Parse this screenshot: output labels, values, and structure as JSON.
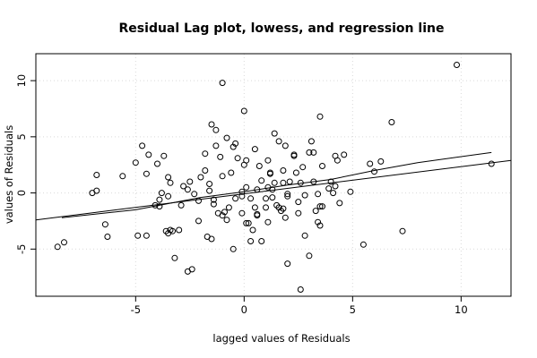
{
  "chart_data": {
    "type": "scatter",
    "title": "Residual Lag plot, lowess, and regression line",
    "xlabel": "lagged values of Residuals",
    "ylabel": "values of Residuals",
    "xlim": [
      -9.6,
      12.3
    ],
    "ylim": [
      -9.2,
      12.4
    ],
    "x_ticks": [
      -5,
      0,
      5,
      10
    ],
    "y_ticks": [
      -5,
      0,
      5,
      10
    ],
    "grid": true,
    "points": [
      [
        -8.6,
        -4.8
      ],
      [
        -8.3,
        -4.4
      ],
      [
        -7.0,
        0.0
      ],
      [
        -6.8,
        0.2
      ],
      [
        -6.8,
        1.6
      ],
      [
        -6.4,
        -2.8
      ],
      [
        -6.3,
        -3.9
      ],
      [
        -5.6,
        1.5
      ],
      [
        -5.0,
        2.7
      ],
      [
        -4.9,
        -3.8
      ],
      [
        -4.7,
        4.2
      ],
      [
        -4.5,
        1.7
      ],
      [
        -4.5,
        -3.8
      ],
      [
        -4.4,
        3.4
      ],
      [
        -4.1,
        -1.1
      ],
      [
        -4.0,
        2.6
      ],
      [
        -3.9,
        -1.2
      ],
      [
        -3.9,
        -0.6
      ],
      [
        -3.8,
        0.0
      ],
      [
        -3.7,
        3.3
      ],
      [
        -3.6,
        -3.4
      ],
      [
        -3.5,
        1.4
      ],
      [
        -3.5,
        -0.3
      ],
      [
        -3.5,
        -3.6
      ],
      [
        -3.4,
        -3.3
      ],
      [
        -3.4,
        0.9
      ],
      [
        -3.3,
        -3.4
      ],
      [
        -3.2,
        -5.8
      ],
      [
        -3.0,
        -3.3
      ],
      [
        -2.9,
        -1.1
      ],
      [
        -2.8,
        0.6
      ],
      [
        -2.6,
        0.3
      ],
      [
        -2.6,
        -7.0
      ],
      [
        -2.4,
        -6.8
      ],
      [
        -2.5,
        1.0
      ],
      [
        -2.3,
        -0.1
      ],
      [
        -2.1,
        -2.5
      ],
      [
        -2.1,
        -0.7
      ],
      [
        -2.0,
        1.4
      ],
      [
        -1.8,
        3.5
      ],
      [
        -1.8,
        2.0
      ],
      [
        -1.7,
        -3.9
      ],
      [
        -1.6,
        0.8
      ],
      [
        -1.6,
        0.2
      ],
      [
        -1.5,
        -4.1
      ],
      [
        -1.5,
        6.1
      ],
      [
        -1.4,
        -0.6
      ],
      [
        -1.4,
        -1.0
      ],
      [
        -1.3,
        5.6
      ],
      [
        -1.3,
        4.2
      ],
      [
        -1.2,
        -1.8
      ],
      [
        -1.1,
        3.2
      ],
      [
        -1.0,
        1.5
      ],
      [
        -1.0,
        -2.0
      ],
      [
        -0.9,
        -1.7
      ],
      [
        -1.0,
        9.8
      ],
      [
        -0.8,
        -2.4
      ],
      [
        -0.8,
        4.9
      ],
      [
        -0.7,
        -1.3
      ],
      [
        -0.6,
        1.8
      ],
      [
        -0.5,
        -5.0
      ],
      [
        -0.5,
        4.1
      ],
      [
        -0.4,
        4.4
      ],
      [
        -0.4,
        -0.5
      ],
      [
        -0.3,
        3.1
      ],
      [
        -0.1,
        -1.8
      ],
      [
        -0.1,
        -0.3
      ],
      [
        -0.1,
        0.1
      ],
      [
        0.0,
        7.3
      ],
      [
        0.0,
        2.5
      ],
      [
        0.1,
        -2.7
      ],
      [
        0.1,
        0.5
      ],
      [
        0.1,
        2.9
      ],
      [
        0.2,
        -2.7
      ],
      [
        0.3,
        -4.3
      ],
      [
        0.3,
        -0.5
      ],
      [
        0.4,
        -3.3
      ],
      [
        0.5,
        -1.3
      ],
      [
        0.5,
        3.9
      ],
      [
        0.6,
        0.3
      ],
      [
        0.6,
        -1.9
      ],
      [
        0.6,
        -2.0
      ],
      [
        0.7,
        2.4
      ],
      [
        0.8,
        -4.3
      ],
      [
        0.8,
        1.1
      ],
      [
        1.0,
        -0.5
      ],
      [
        1.0,
        -1.3
      ],
      [
        1.1,
        0.5
      ],
      [
        1.1,
        2.9
      ],
      [
        1.1,
        -2.6
      ],
      [
        1.2,
        1.8
      ],
      [
        1.2,
        1.7
      ],
      [
        1.3,
        -0.4
      ],
      [
        1.3,
        0.3
      ],
      [
        1.4,
        0.9
      ],
      [
        1.4,
        5.3
      ],
      [
        1.5,
        -1.1
      ],
      [
        1.6,
        4.6
      ],
      [
        1.6,
        -1.3
      ],
      [
        1.7,
        -1.6
      ],
      [
        1.8,
        0.9
      ],
      [
        1.8,
        2.0
      ],
      [
        1.8,
        -1.4
      ],
      [
        1.9,
        -2.2
      ],
      [
        1.9,
        4.2
      ],
      [
        2.0,
        -0.3
      ],
      [
        2.0,
        -0.1
      ],
      [
        2.0,
        -6.3
      ],
      [
        2.1,
        1.0
      ],
      [
        2.3,
        3.4
      ],
      [
        2.3,
        3.3
      ],
      [
        2.4,
        1.8
      ],
      [
        2.5,
        -0.8
      ],
      [
        2.5,
        -1.8
      ],
      [
        2.6,
        0.9
      ],
      [
        2.6,
        -8.6
      ],
      [
        2.7,
        2.3
      ],
      [
        2.8,
        -3.8
      ],
      [
        2.8,
        -0.2
      ],
      [
        3.0,
        3.6
      ],
      [
        3.0,
        -5.6
      ],
      [
        3.1,
        4.6
      ],
      [
        3.2,
        1.0
      ],
      [
        3.2,
        3.6
      ],
      [
        3.3,
        -1.6
      ],
      [
        3.4,
        -0.1
      ],
      [
        3.4,
        -2.6
      ],
      [
        3.5,
        6.8
      ],
      [
        3.5,
        -2.9
      ],
      [
        3.5,
        -1.2
      ],
      [
        3.6,
        -1.2
      ],
      [
        3.6,
        2.4
      ],
      [
        3.9,
        0.4
      ],
      [
        4.0,
        1.0
      ],
      [
        4.1,
        0.0
      ],
      [
        4.2,
        0.6
      ],
      [
        4.2,
        3.3
      ],
      [
        4.3,
        2.9
      ],
      [
        4.4,
        -0.9
      ],
      [
        4.6,
        3.4
      ],
      [
        4.9,
        0.1
      ],
      [
        5.5,
        -4.6
      ],
      [
        5.8,
        2.6
      ],
      [
        6.0,
        1.9
      ],
      [
        6.3,
        2.8
      ],
      [
        6.8,
        6.3
      ],
      [
        7.3,
        -3.4
      ],
      [
        9.8,
        11.4
      ],
      [
        11.4,
        2.6
      ]
    ],
    "regression_line": [
      [
        -9.6,
        -2.4
      ],
      [
        12.3,
        2.9
      ]
    ],
    "lowess_line": [
      [
        -8.4,
        -2.2
      ],
      [
        -5.0,
        -1.5
      ],
      [
        -2.0,
        -0.4
      ],
      [
        0.0,
        0.1
      ],
      [
        2.0,
        0.7
      ],
      [
        4.0,
        1.2
      ],
      [
        6.0,
        2.0
      ],
      [
        8.0,
        2.7
      ],
      [
        11.4,
        3.6
      ]
    ]
  }
}
